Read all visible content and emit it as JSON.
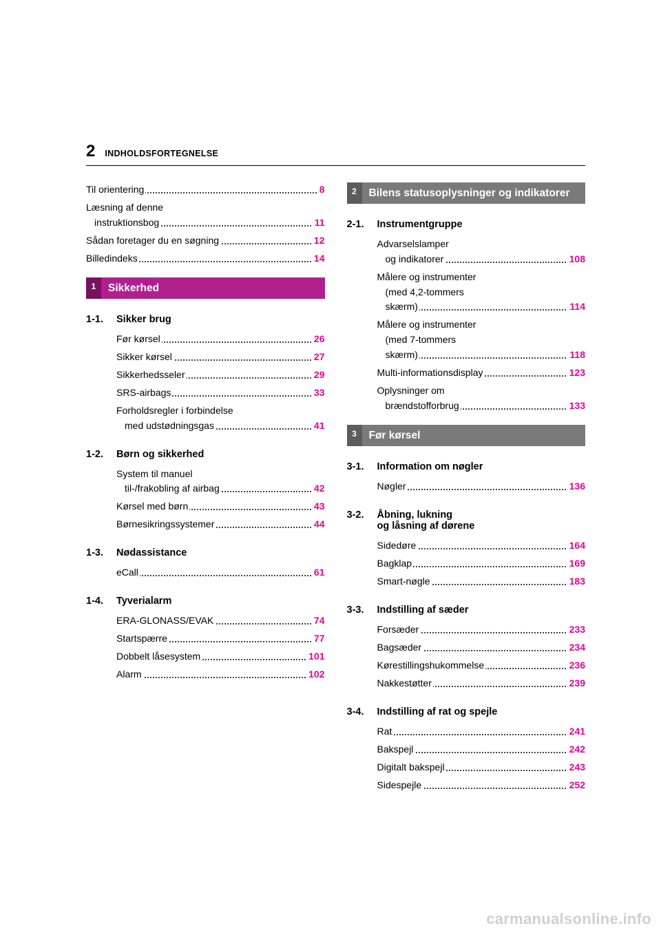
{
  "page_number": "2",
  "page_title": "INDHOLDSFORTEGNELSE",
  "intro_entries": [
    {
      "label": "Til orientering",
      "page": "8",
      "indent": false,
      "two_line": false
    },
    {
      "label": "Læsning af denne",
      "label2": "instruktionsbog",
      "page": "11",
      "indent": false,
      "two_line": true
    },
    {
      "label": "Sådan foretager du en søgning",
      "page": "12",
      "indent": false,
      "two_line": false
    },
    {
      "label": "Billedindeks",
      "page": "14",
      "indent": false,
      "two_line": false
    }
  ],
  "section1": {
    "num": "1",
    "title": "Sikkerhed"
  },
  "sub_1_1": {
    "num": "1-1.",
    "title": "Sikker brug"
  },
  "entries_1_1": [
    {
      "label": "Før kørsel",
      "page": "26"
    },
    {
      "label": "Sikker kørsel",
      "page": "27"
    },
    {
      "label": "Sikkerhedsseler",
      "page": "29"
    },
    {
      "label": "SRS-airbags",
      "page": "33"
    },
    {
      "label": "Forholdsregler i forbindelse",
      "label2": "med udstødningsgas",
      "page": "41",
      "two_line": true
    }
  ],
  "sub_1_2": {
    "num": "1-2.",
    "title": "Børn og sikkerhed"
  },
  "entries_1_2": [
    {
      "label": "System til manuel",
      "label2": "til-/frakobling af airbag",
      "page": "42",
      "two_line": true
    },
    {
      "label": "Kørsel med børn",
      "page": "43"
    },
    {
      "label": "Børnesikringssystemer",
      "page": "44"
    }
  ],
  "sub_1_3": {
    "num": "1-3.",
    "title": "Nødassistance"
  },
  "entries_1_3": [
    {
      "label": "eCall",
      "page": "61"
    }
  ],
  "sub_1_4": {
    "num": "1-4.",
    "title": "Tyverialarm"
  },
  "entries_1_4": [
    {
      "label": "ERA-GLONASS/EVAK",
      "page": "74"
    },
    {
      "label": "Startspærre",
      "page": "77"
    },
    {
      "label": "Dobbelt låsesystem",
      "page": "101"
    },
    {
      "label": "Alarm",
      "page": "102"
    }
  ],
  "section2": {
    "num": "2",
    "title": "Bilens statusoplysninger og indikatorer"
  },
  "sub_2_1": {
    "num": "2-1.",
    "title": "Instrumentgruppe"
  },
  "entries_2_1": [
    {
      "label": "Advarselslamper",
      "label2": "og indikatorer",
      "page": "108",
      "two_line": true
    },
    {
      "label": "Målere og instrumenter",
      "label2b": "(med 4,2-tommers",
      "label3": "skærm)",
      "page": "114",
      "three_line": true
    },
    {
      "label": "Målere og instrumenter",
      "label2b": "(med 7-tommers",
      "label3": "skærm)",
      "page": "118",
      "three_line": true
    },
    {
      "label": "Multi-informationsdisplay",
      "page": "123"
    },
    {
      "label": "Oplysninger om",
      "label2": "brændstofforbrug",
      "page": "133",
      "two_line": true
    }
  ],
  "section3": {
    "num": "3",
    "title": "Før kørsel"
  },
  "sub_3_1": {
    "num": "3-1.",
    "title": "Information om nøgler"
  },
  "entries_3_1": [
    {
      "label": "Nøgler",
      "page": "136"
    }
  ],
  "sub_3_2": {
    "num": "3-2.",
    "title": "Åbning, lukning",
    "title2": "og låsning af dørene"
  },
  "entries_3_2": [
    {
      "label": "Sidedøre",
      "page": "164"
    },
    {
      "label": "Bagklap",
      "page": "169"
    },
    {
      "label": "Smart-nøgle",
      "page": "183"
    }
  ],
  "sub_3_3": {
    "num": "3-3.",
    "title": "Indstilling af sæder"
  },
  "entries_3_3": [
    {
      "label": "Forsæder",
      "page": "233"
    },
    {
      "label": "Bagsæder",
      "page": "234"
    },
    {
      "label": "Kørestillingshukommelse",
      "page": "236"
    },
    {
      "label": "Nakkestøtter",
      "page": "239"
    }
  ],
  "sub_3_4": {
    "num": "3-4.",
    "title": "Indstilling af rat og spejle"
  },
  "entries_3_4": [
    {
      "label": "Rat",
      "page": "241"
    },
    {
      "label": "Bakspejl",
      "page": "242"
    },
    {
      "label": "Digitalt bakspejl",
      "page": "243"
    },
    {
      "label": "Sidespejle",
      "page": "252"
    }
  ],
  "watermark": "carmanualsonline.info",
  "colors": {
    "pagenum": "#e60095",
    "bar_magenta": "#b11f8e",
    "bar_grey": "#7a7a7a"
  }
}
